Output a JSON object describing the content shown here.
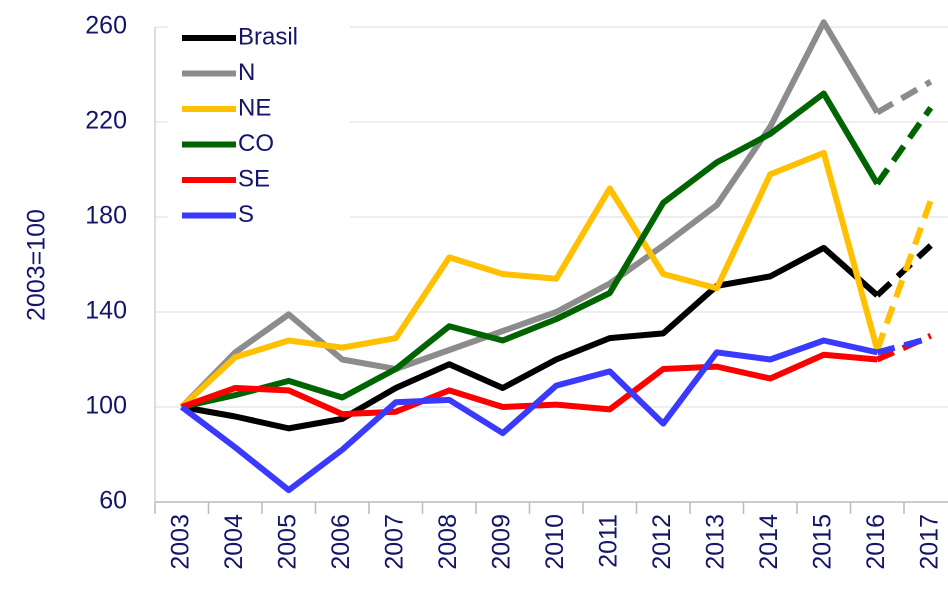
{
  "chart_data": {
    "type": "line",
    "y_label": "2003=100",
    "categories": [
      "2003",
      "2004",
      "2005",
      "2006",
      "2007",
      "2008",
      "2009",
      "2010",
      "2011",
      "2012",
      "2013",
      "2014",
      "2015",
      "2016",
      "2017"
    ],
    "series": [
      {
        "name": "Brasil",
        "color": "#000000",
        "values": [
          100,
          96,
          91,
          95,
          108,
          118,
          108,
          120,
          129,
          131,
          151,
          155,
          167,
          147,
          168
        ]
      },
      {
        "name": "N",
        "color": "#8c8c8c",
        "values": [
          100,
          123,
          139,
          120,
          116,
          124,
          132,
          140,
          152,
          168,
          185,
          218,
          262,
          224,
          237
        ]
      },
      {
        "name": "NE",
        "color": "#ffc000",
        "values": [
          100,
          121,
          128,
          125,
          129,
          163,
          156,
          154,
          192,
          156,
          150,
          198,
          207,
          124,
          187
        ]
      },
      {
        "name": "CO",
        "color": "#006400",
        "values": [
          100,
          105,
          111,
          104,
          116,
          134,
          128,
          137,
          148,
          186,
          203,
          215,
          232,
          194,
          226
        ]
      },
      {
        "name": "SE",
        "color": "#ff0000",
        "values": [
          100,
          108,
          107,
          97,
          98,
          107,
          100,
          101,
          99,
          116,
          117,
          112,
          122,
          120,
          130
        ]
      },
      {
        "name": "S",
        "color": "#3a3aff",
        "values": [
          100,
          83,
          65,
          82,
          102,
          103,
          89,
          109,
          115,
          93,
          123,
          120,
          128,
          123,
          129
        ]
      }
    ],
    "dashed_segments": "last",
    "ylim": [
      60,
      260
    ],
    "yticks": [
      60,
      100,
      140,
      180,
      220,
      260
    ],
    "grid": true,
    "legend": "top-left"
  }
}
